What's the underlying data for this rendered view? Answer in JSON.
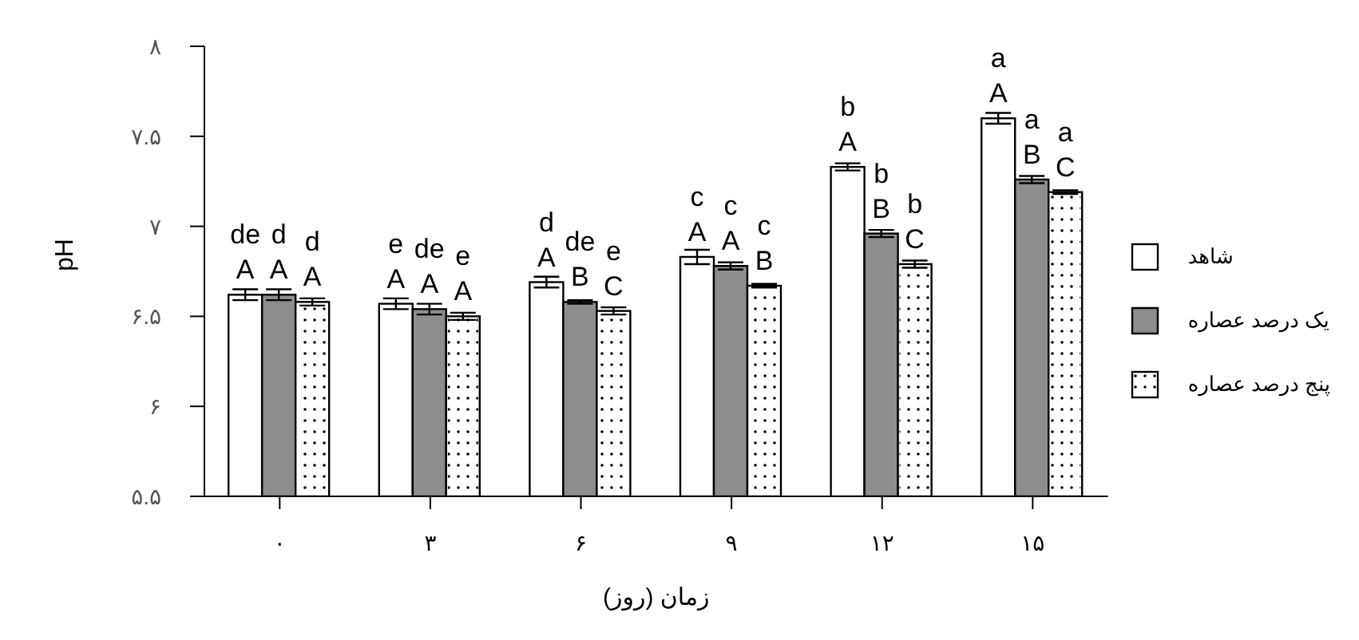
{
  "chart_data": {
    "type": "bar",
    "xlabel": "زمان (روز)",
    "ylabel": "pH",
    "categories": [
      "۰",
      "۳",
      "۶",
      "۹",
      "۱۲",
      "۱۵"
    ],
    "series": [
      {
        "name": "شاهد",
        "color": "#ffffff",
        "values": [
          6.62,
          6.57,
          6.69,
          6.83,
          7.33,
          7.6
        ],
        "errors": [
          0.03,
          0.03,
          0.03,
          0.04,
          0.02,
          0.03
        ],
        "value_labels": [
          "de\nA",
          "e\nA",
          "d\nA",
          "c\nA",
          "b\nA",
          "a\nA"
        ]
      },
      {
        "name": "یک درصد عصاره",
        "color": "#8f8c90",
        "values": [
          6.62,
          6.54,
          6.58,
          6.78,
          6.96,
          7.26
        ],
        "errors": [
          0.03,
          0.03,
          0.01,
          0.02,
          0.02,
          0.02
        ],
        "value_labels": [
          "d\nA",
          "de\nA",
          "de\nB",
          "c\nA",
          "b\nB",
          "a\nB"
        ]
      },
      {
        "name": "پنج  درصد عصاره",
        "color": "#ffffff",
        "values": [
          6.58,
          6.5,
          6.53,
          6.67,
          6.79,
          7.19
        ],
        "errors": [
          0.02,
          0.02,
          0.02,
          0.01,
          0.02,
          0.01
        ],
        "value_labels": [
          "d\nA",
          "e\nA",
          "e\nC",
          "c\nB",
          "b\nC",
          "a\nC"
        ]
      }
    ],
    "ylim": [
      5.5,
      8
    ],
    "yticks": [
      {
        "value": 5.5,
        "label": "۵.۵"
      },
      {
        "value": 6,
        "label": "۶"
      },
      {
        "value": 6.5,
        "label": "۶.۵"
      },
      {
        "value": 7,
        "label": "۷"
      },
      {
        "value": 7.5,
        "label": "۷.۵"
      },
      {
        "value": 8,
        "label": "۸"
      }
    ],
    "grid": false,
    "legend": "right"
  }
}
